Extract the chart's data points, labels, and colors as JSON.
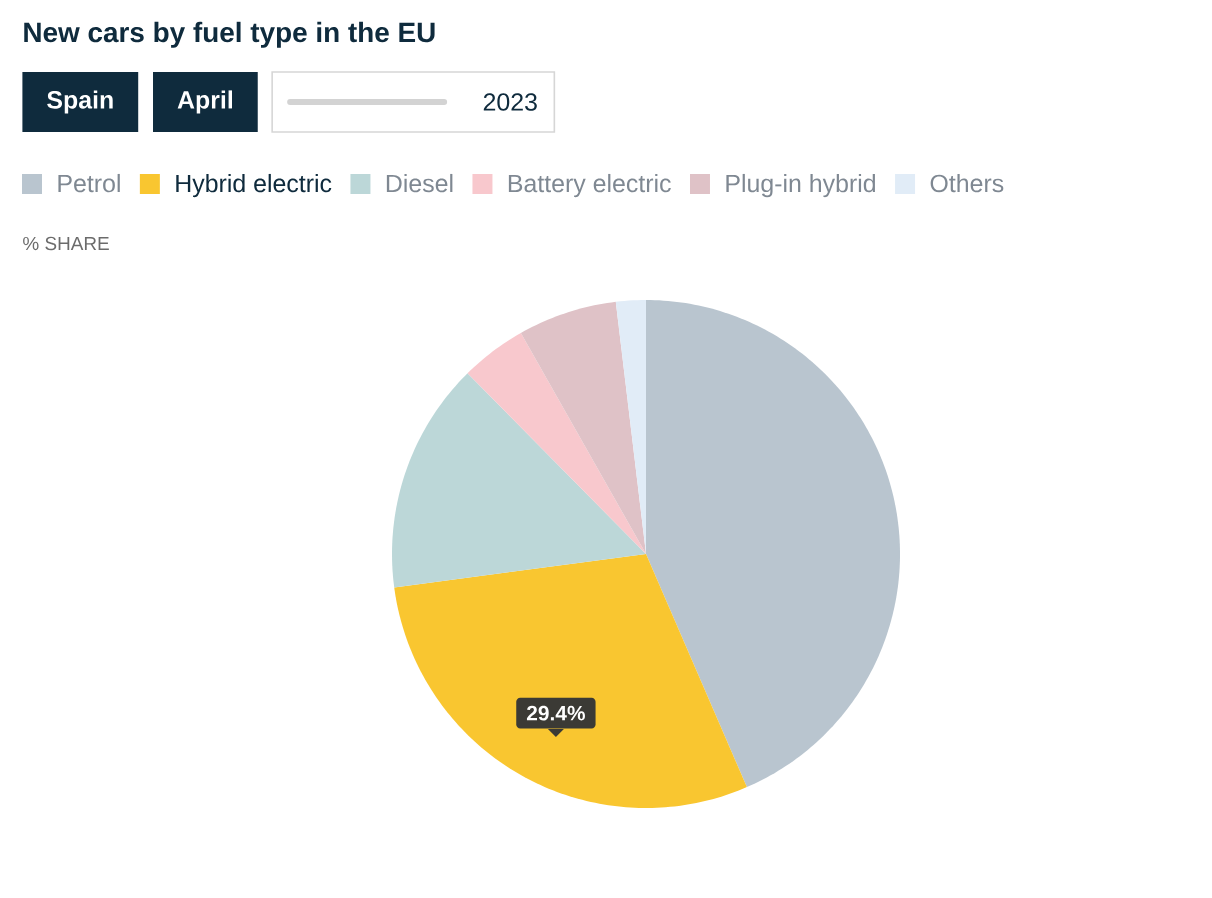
{
  "chart_data": {
    "type": "pie",
    "title": "New cars by fuel type in the EU",
    "annotations": [
      "Spain",
      "April",
      "2023",
      "% SHARE"
    ],
    "categories": [
      "Petrol",
      "Hybrid electric",
      "Diesel",
      "Battery electric",
      "Plug-in hybrid",
      "Others"
    ],
    "values": [
      43.5,
      29.4,
      14.7,
      4.2,
      6.3,
      1.9
    ],
    "colors": [
      "#b9c5cf",
      "#f9c630",
      "#bcd7d8",
      "#f8c8cd",
      "#dfc2c7",
      "#e1ecf7"
    ],
    "value_labels": [
      null,
      "29.4%",
      null,
      null,
      null,
      null
    ],
    "legend": "top"
  }
}
